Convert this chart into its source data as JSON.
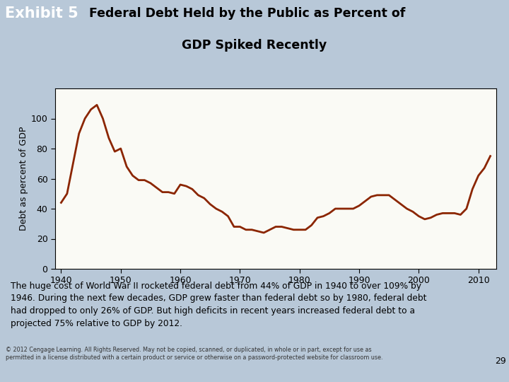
{
  "title_exhibit": "Exhibit 5",
  "title_main_line1": "Federal Debt Held by the Public as Percent of",
  "title_main_line2": "GDP Spiked Recently",
  "ylabel": "Debt as percent of GDP",
  "header_teal_color": "#5B9BAD",
  "header_purple_color": "#9090C0",
  "chart_outer_bg": "#E8E0D0",
  "chart_inner_bg": "#FFFFFF",
  "outer_bg_color": "#B8C8D8",
  "line_color": "#8B2500",
  "line_width": 2.0,
  "ylim": [
    0,
    120
  ],
  "xlim": [
    1939,
    2013
  ],
  "yticks": [
    0,
    20,
    40,
    60,
    80,
    100
  ],
  "xticks": [
    1940,
    1950,
    1960,
    1970,
    1980,
    1990,
    2000,
    2010
  ],
  "caption": "The huge cost of World War II rocketed federal debt from 44% of GDP in 1940 to over 109% by\n1946. During the next few decades, GDP grew faster than federal debt so by 1980, federal debt\nhad dropped to only 26% of GDP. But high deficits in recent years increased federal debt to a\nprojected 75% relative to GDP by 2012.",
  "footer": "© 2012 Cengage Learning. All Rights Reserved. May not be copied, scanned, or duplicated, in whole or in part, except for use as\npermitted in a license distributed with a certain product or service or otherwise on a password-protected website for classroom use.",
  "page_number": "29",
  "years": [
    1940,
    1941,
    1942,
    1943,
    1944,
    1945,
    1946,
    1947,
    1948,
    1949,
    1950,
    1951,
    1952,
    1953,
    1954,
    1955,
    1956,
    1957,
    1958,
    1959,
    1960,
    1961,
    1962,
    1963,
    1964,
    1965,
    1966,
    1967,
    1968,
    1969,
    1970,
    1971,
    1972,
    1973,
    1974,
    1975,
    1976,
    1977,
    1978,
    1979,
    1980,
    1981,
    1982,
    1983,
    1984,
    1985,
    1986,
    1987,
    1988,
    1989,
    1990,
    1991,
    1992,
    1993,
    1994,
    1995,
    1996,
    1997,
    1998,
    1999,
    2000,
    2001,
    2002,
    2003,
    2004,
    2005,
    2006,
    2007,
    2008,
    2009,
    2010,
    2011,
    2012
  ],
  "values": [
    44,
    50,
    70,
    90,
    100,
    106,
    109,
    100,
    87,
    78,
    80,
    68,
    62,
    59,
    59,
    57,
    54,
    51,
    51,
    50,
    56,
    55,
    53,
    49,
    47,
    43,
    40,
    38,
    35,
    28,
    28,
    26,
    26,
    25,
    24,
    26,
    28,
    28,
    27,
    26,
    26,
    26,
    29,
    34,
    35,
    37,
    40,
    40,
    40,
    40,
    42,
    45,
    48,
    49,
    49,
    49,
    46,
    43,
    40,
    38,
    35,
    33,
    34,
    36,
    37,
    37,
    37,
    36,
    40,
    53,
    62,
    67,
    75
  ]
}
